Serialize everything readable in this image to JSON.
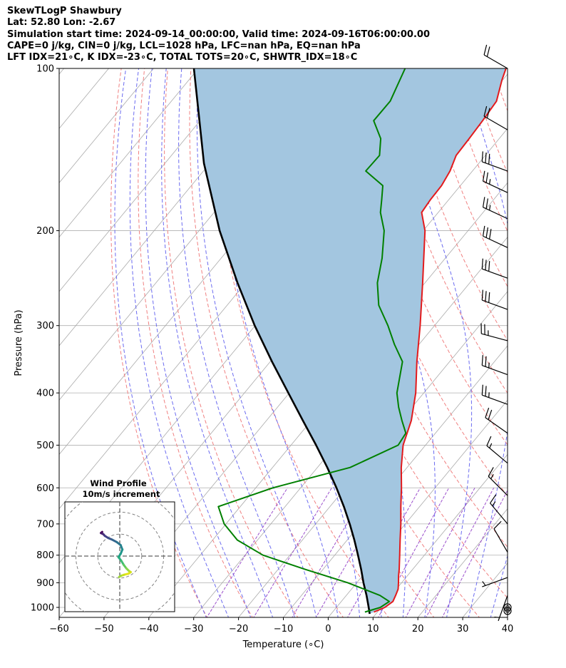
{
  "title_lines": [
    "SkewTLogP Shawbury",
    "Lat: 52.80   Lon: -2.67",
    "Simulation start time: 2024-09-14_00:00:00, Valid time: 2024-09-16T06:00:00.00",
    "CAPE=0 j/kg, CIN=0 j/kg, LCL=1028 hPa, LFC=nan hPa, EQ=nan hPa",
    "LFT IDX=21∘C, K IDX=-23∘C, TOTAL TOTS=20∘C, SHWTR_IDX=18∘C"
  ],
  "chart_data": {
    "type": "line",
    "subtype": "skew-t log-p",
    "xlabel": "Temperature (∘C)",
    "ylabel": "Pressure (hPa)",
    "x_ticks": [
      "−60",
      "−50",
      "−40",
      "−30",
      "−20",
      "−10",
      "0",
      "10",
      "20",
      "30",
      "40"
    ],
    "x_tick_values": [
      -60,
      -50,
      -40,
      -30,
      -20,
      -10,
      0,
      10,
      20,
      30,
      40
    ],
    "y_ticks": [
      "100",
      "200",
      "300",
      "400",
      "500",
      "600",
      "700",
      "800",
      "900",
      "1000"
    ],
    "y_tick_values": [
      100,
      200,
      300,
      400,
      500,
      600,
      700,
      800,
      900,
      1000
    ],
    "xlim": [
      -60,
      40
    ],
    "ylim": [
      1050,
      100
    ],
    "grid": true,
    "colors": {
      "temperature": "#e31a1c",
      "dewpoint": "#008000",
      "parcel": "#000000",
      "fill": "#a3c6e0",
      "dry_adiabat": "#f08080",
      "moist_adiabat": "#6b6bf0",
      "mixing_ratio": "#9b4fcc",
      "isotherm": "#aaaaaa"
    },
    "series": [
      {
        "key": "temperature",
        "points": [
          {
            "p": 1020,
            "t": 9.2
          },
          {
            "p": 1000,
            "t": 10.8
          },
          {
            "p": 975,
            "t": 11.5
          },
          {
            "p": 950,
            "t": 11.0
          },
          {
            "p": 925,
            "t": 10.4
          },
          {
            "p": 900,
            "t": 9.3
          },
          {
            "p": 875,
            "t": 8.1
          },
          {
            "p": 850,
            "t": 7.0
          },
          {
            "p": 800,
            "t": 4.5
          },
          {
            "p": 750,
            "t": 1.8
          },
          {
            "p": 700,
            "t": -1.0
          },
          {
            "p": 650,
            "t": -4.2
          },
          {
            "p": 600,
            "t": -7.5
          },
          {
            "p": 550,
            "t": -11.3
          },
          {
            "p": 500,
            "t": -15.0
          },
          {
            "p": 450,
            "t": -17.7
          },
          {
            "p": 400,
            "t": -21.8
          },
          {
            "p": 350,
            "t": -27.3
          },
          {
            "p": 300,
            "t": -33.2
          },
          {
            "p": 250,
            "t": -40.5
          },
          {
            "p": 200,
            "t": -49.6
          },
          {
            "p": 185,
            "t": -53.7
          },
          {
            "p": 175,
            "t": -54.1
          },
          {
            "p": 165,
            "t": -54.2
          },
          {
            "p": 155,
            "t": -55.0
          },
          {
            "p": 145,
            "t": -56.5
          },
          {
            "p": 135,
            "t": -56.7
          },
          {
            "p": 125,
            "t": -57.0
          },
          {
            "p": 115,
            "t": -57.5
          },
          {
            "p": 105,
            "t": -60.2
          },
          {
            "p": 100,
            "t": -61.4
          }
        ]
      },
      {
        "key": "dewpoint",
        "points": [
          {
            "p": 1020,
            "t": 7.2
          },
          {
            "p": 1000,
            "t": 9.8
          },
          {
            "p": 975,
            "t": 10.7
          },
          {
            "p": 950,
            "t": 7.5
          },
          {
            "p": 900,
            "t": -2.0
          },
          {
            "p": 850,
            "t": -14.0
          },
          {
            "p": 800,
            "t": -26.0
          },
          {
            "p": 750,
            "t": -34.5
          },
          {
            "p": 700,
            "t": -40.4
          },
          {
            "p": 650,
            "t": -44.9
          },
          {
            "p": 600,
            "t": -36.2
          },
          {
            "p": 550,
            "t": -22.7
          },
          {
            "p": 500,
            "t": -16.1
          },
          {
            "p": 475,
            "t": -16.6
          },
          {
            "p": 450,
            "t": -19.8
          },
          {
            "p": 425,
            "t": -23.0
          },
          {
            "p": 400,
            "t": -26.0
          },
          {
            "p": 350,
            "t": -30.5
          },
          {
            "p": 325,
            "t": -35.5
          },
          {
            "p": 300,
            "t": -40.4
          },
          {
            "p": 275,
            "t": -46.2
          },
          {
            "p": 250,
            "t": -50.6
          },
          {
            "p": 225,
            "t": -54.1
          },
          {
            "p": 200,
            "t": -58.7
          },
          {
            "p": 185,
            "t": -62.9
          },
          {
            "p": 175,
            "t": -65.0
          },
          {
            "p": 165,
            "t": -67.3
          },
          {
            "p": 155,
            "t": -73.8
          },
          {
            "p": 145,
            "t": -73.6
          },
          {
            "p": 135,
            "t": -76.4
          },
          {
            "p": 125,
            "t": -81.3
          },
          {
            "p": 115,
            "t": -81.2
          },
          {
            "p": 100,
            "t": -83.9
          }
        ]
      },
      {
        "key": "parcel",
        "points": [
          {
            "p": 1028,
            "t": 8.6
          },
          {
            "p": 1000,
            "t": 7.2
          },
          {
            "p": 950,
            "t": 4.5
          },
          {
            "p": 900,
            "t": 1.5
          },
          {
            "p": 850,
            "t": -1.5
          },
          {
            "p": 800,
            "t": -4.8
          },
          {
            "p": 750,
            "t": -8.4
          },
          {
            "p": 700,
            "t": -12.4
          },
          {
            "p": 650,
            "t": -16.9
          },
          {
            "p": 600,
            "t": -22.0
          },
          {
            "p": 550,
            "t": -27.8
          },
          {
            "p": 500,
            "t": -34.4
          },
          {
            "p": 450,
            "t": -41.9
          },
          {
            "p": 400,
            "t": -50.2
          },
          {
            "p": 350,
            "t": -59.6
          },
          {
            "p": 300,
            "t": -70.1
          },
          {
            "p": 250,
            "t": -81.8
          },
          {
            "p": 200,
            "t": -95.4
          },
          {
            "p": 150,
            "t": -111.3
          },
          {
            "p": 100,
            "t": -131.0
          }
        ]
      }
    ],
    "wind_barbs": [
      {
        "p": 100,
        "speed_kt": 20,
        "dir_deg": 300
      },
      {
        "p": 130,
        "speed_kt": 20,
        "dir_deg": 300
      },
      {
        "p": 155,
        "speed_kt": 30,
        "dir_deg": 290
      },
      {
        "p": 170,
        "speed_kt": 25,
        "dir_deg": 295
      },
      {
        "p": 190,
        "speed_kt": 25,
        "dir_deg": 295
      },
      {
        "p": 215,
        "speed_kt": 30,
        "dir_deg": 295
      },
      {
        "p": 245,
        "speed_kt": 30,
        "dir_deg": 290
      },
      {
        "p": 280,
        "speed_kt": 30,
        "dir_deg": 290
      },
      {
        "p": 320,
        "speed_kt": 25,
        "dir_deg": 285
      },
      {
        "p": 370,
        "speed_kt": 25,
        "dir_deg": 290
      },
      {
        "p": 420,
        "speed_kt": 25,
        "dir_deg": 290
      },
      {
        "p": 475,
        "speed_kt": 20,
        "dir_deg": 305
      },
      {
        "p": 540,
        "speed_kt": 15,
        "dir_deg": 310
      },
      {
        "p": 620,
        "speed_kt": 15,
        "dir_deg": 315
      },
      {
        "p": 700,
        "speed_kt": 15,
        "dir_deg": 320
      },
      {
        "p": 790,
        "speed_kt": 10,
        "dir_deg": 330
      },
      {
        "p": 880,
        "speed_kt": 5,
        "dir_deg": 250
      },
      {
        "p": 950,
        "speed_kt": 5,
        "dir_deg": 200
      },
      {
        "p": 1000,
        "speed_kt": 0,
        "dir_deg": 0
      },
      {
        "p": 1015,
        "speed_kt": 0,
        "dir_deg": 0
      }
    ],
    "hodograph": {
      "title": "Wind Profile",
      "subtitle": "10m/s increment",
      "rings_ms": [
        10,
        20,
        30,
        40
      ],
      "range_ms": 25,
      "points": [
        {
          "u": -0.3,
          "v": -9.5
        },
        {
          "u": 0.6,
          "v": -9.0
        },
        {
          "u": 2.0,
          "v": -8.5
        },
        {
          "u": 4.0,
          "v": -8.0
        },
        {
          "u": 5.0,
          "v": -7.3
        },
        {
          "u": 4.2,
          "v": -6.8
        },
        {
          "u": 3.0,
          "v": -5.6
        },
        {
          "u": 1.8,
          "v": -4.0
        },
        {
          "u": 0.6,
          "v": -2.0
        },
        {
          "u": -0.6,
          "v": -0.5
        },
        {
          "u": 0.4,
          "v": 1.0
        },
        {
          "u": 1.2,
          "v": 3.0
        },
        {
          "u": 0.4,
          "v": 5.0
        },
        {
          "u": -1.4,
          "v": 6.4
        },
        {
          "u": -3.5,
          "v": 7.5
        },
        {
          "u": -5.2,
          "v": 8.2
        },
        {
          "u": -6.8,
          "v": 9.2
        },
        {
          "u": -7.5,
          "v": 10.0
        },
        {
          "u": -8.6,
          "v": 10.5
        },
        {
          "u": -8.0,
          "v": 11.0
        }
      ]
    }
  }
}
